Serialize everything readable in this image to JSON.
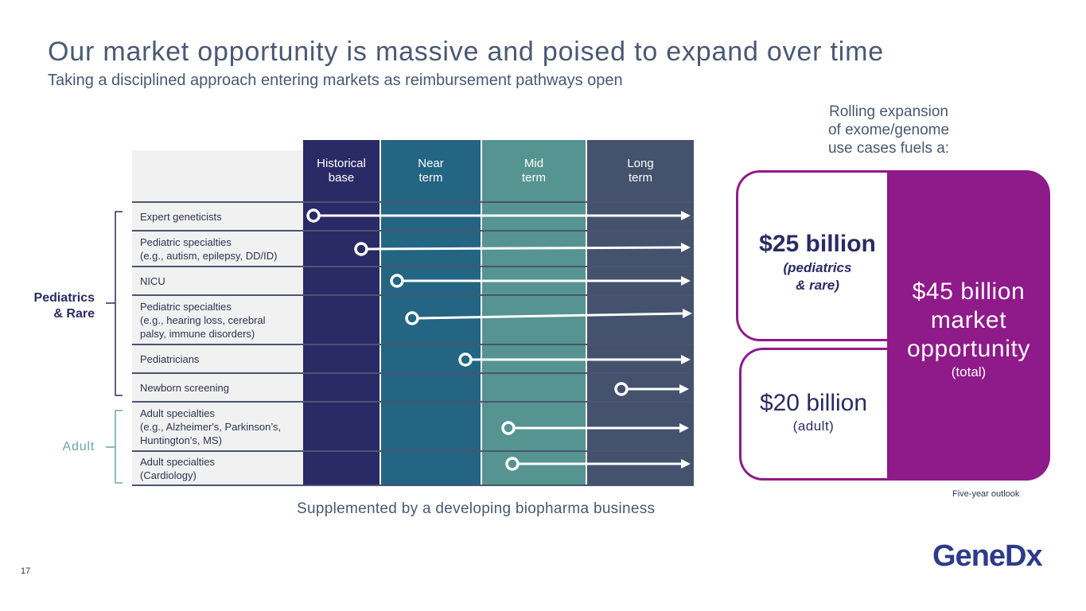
{
  "title": "Our market opportunity is massive and poised to expand over time",
  "subtitle": "Taking a disciplined approach entering markets as reimbursement pathways open",
  "columns": [
    {
      "line1": "Historical",
      "line2": "base",
      "color": "#2a2a66"
    },
    {
      "line1": "Near",
      "line2": "term",
      "color": "#236582"
    },
    {
      "line1": "Mid",
      "line2": "term",
      "color": "#559490"
    },
    {
      "line1": "Long",
      "line2": "term",
      "color": "#44526d"
    }
  ],
  "rows": [
    {
      "line1": "Expert geneticists",
      "line2": "",
      "line3": ""
    },
    {
      "line1": "Pediatric specialties",
      "line2": "(e.g., autism, epilepsy, DD/ID)",
      "line3": ""
    },
    {
      "line1": "NICU",
      "line2": "",
      "line3": ""
    },
    {
      "line1": "Pediatric specialties",
      "line2": "(e.g., hearing loss, cerebral",
      "line3": "palsy, immune disorders)"
    },
    {
      "line1": "Pediatricians",
      "line2": "",
      "line3": ""
    },
    {
      "line1": "Newborn screening",
      "line2": "",
      "line3": ""
    },
    {
      "line1": "Adult specialties",
      "line2": "(e.g., Alzheimer's, Parkinson’s,",
      "line3": "Huntington's, MS)"
    },
    {
      "line1": "Adult specialties",
      "line2": "(Cardiology)",
      "line3": ""
    }
  ],
  "groups": {
    "pediatrics_line1": "Pediatrics",
    "pediatrics_line2": "& Rare",
    "adult": "Adult"
  },
  "footer_note": "Supplemented by a developing biopharma business",
  "rolling": {
    "line1": "Rolling expansion",
    "line2": "of exome/genome",
    "line3": "use cases fuels a:"
  },
  "market": {
    "pediatrics_amount": "$25 billion",
    "pediatrics_note_line1": "(pediatrics",
    "pediatrics_note_line2": "& rare)",
    "adult_amount": "$20 billion",
    "adult_note": "(adult)",
    "total_line1": "$45 billion",
    "total_line2": "market",
    "total_line3": "opportunity",
    "total_note": "(total)",
    "outlook": "Five-year outlook"
  },
  "page_number": "17",
  "logo_text": "GeneDx",
  "colors": {
    "purple": "#8f1a8a",
    "navy": "#2a2a66",
    "title": "#4a5873",
    "adult_teal": "#6fa7a2"
  }
}
